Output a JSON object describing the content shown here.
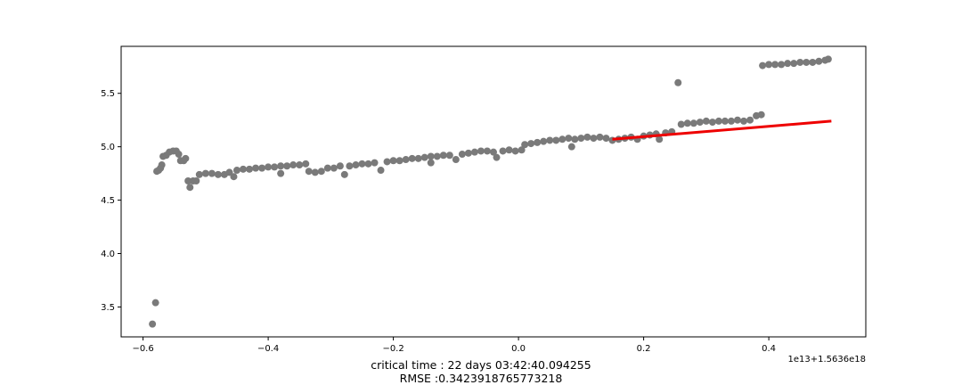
{
  "chart_data": {
    "type": "scatter",
    "x_offset_label": "1e13+1.5636e18",
    "xlim": [
      -0.635,
      0.555
    ],
    "ylim": [
      3.22,
      5.94
    ],
    "x_ticks": [
      -0.6,
      -0.4,
      -0.2,
      0.0,
      0.2,
      0.4
    ],
    "x_tick_labels": [
      "−0.6",
      "−0.4",
      "−0.2",
      "0.0",
      "0.2",
      "0.4"
    ],
    "y_ticks": [
      3.5,
      4.0,
      4.5,
      5.0,
      5.5
    ],
    "y_tick_labels": [
      "3.5",
      "4.0",
      "4.5",
      "5.0",
      "5.5"
    ],
    "grid": false,
    "colors": {
      "points": "#7a7a7a",
      "fit_line": "#ee0000"
    },
    "points": [
      [
        -0.585,
        3.34
      ],
      [
        -0.58,
        3.54
      ],
      [
        -0.578,
        4.77
      ],
      [
        -0.575,
        4.78
      ],
      [
        -0.572,
        4.8
      ],
      [
        -0.57,
        4.83
      ],
      [
        -0.568,
        4.91
      ],
      [
        -0.563,
        4.92
      ],
      [
        -0.558,
        4.95
      ],
      [
        -0.552,
        4.96
      ],
      [
        -0.547,
        4.96
      ],
      [
        -0.543,
        4.93
      ],
      [
        -0.54,
        4.87
      ],
      [
        -0.535,
        4.87
      ],
      [
        -0.532,
        4.89
      ],
      [
        -0.528,
        4.68
      ],
      [
        -0.525,
        4.62
      ],
      [
        -0.52,
        4.68
      ],
      [
        -0.515,
        4.68
      ],
      [
        -0.51,
        4.74
      ],
      [
        -0.5,
        4.75
      ],
      [
        -0.49,
        4.75
      ],
      [
        -0.48,
        4.74
      ],
      [
        -0.47,
        4.74
      ],
      [
        -0.462,
        4.76
      ],
      [
        -0.455,
        4.72
      ],
      [
        -0.45,
        4.78
      ],
      [
        -0.44,
        4.79
      ],
      [
        -0.43,
        4.79
      ],
      [
        -0.42,
        4.8
      ],
      [
        -0.41,
        4.8
      ],
      [
        -0.4,
        4.81
      ],
      [
        -0.39,
        4.81
      ],
      [
        -0.38,
        4.82
      ],
      [
        -0.38,
        4.75
      ],
      [
        -0.37,
        4.82
      ],
      [
        -0.36,
        4.83
      ],
      [
        -0.35,
        4.83
      ],
      [
        -0.34,
        4.84
      ],
      [
        -0.335,
        4.77
      ],
      [
        -0.325,
        4.76
      ],
      [
        -0.315,
        4.77
      ],
      [
        -0.305,
        4.8
      ],
      [
        -0.295,
        4.8
      ],
      [
        -0.285,
        4.82
      ],
      [
        -0.278,
        4.74
      ],
      [
        -0.27,
        4.82
      ],
      [
        -0.26,
        4.83
      ],
      [
        -0.25,
        4.84
      ],
      [
        -0.24,
        4.84
      ],
      [
        -0.23,
        4.85
      ],
      [
        -0.22,
        4.78
      ],
      [
        -0.21,
        4.86
      ],
      [
        -0.2,
        4.87
      ],
      [
        -0.19,
        4.87
      ],
      [
        -0.18,
        4.88
      ],
      [
        -0.17,
        4.89
      ],
      [
        -0.16,
        4.89
      ],
      [
        -0.15,
        4.9
      ],
      [
        -0.14,
        4.91
      ],
      [
        -0.14,
        4.85
      ],
      [
        -0.13,
        4.91
      ],
      [
        -0.12,
        4.92
      ],
      [
        -0.11,
        4.92
      ],
      [
        -0.1,
        4.88
      ],
      [
        -0.09,
        4.93
      ],
      [
        -0.08,
        4.94
      ],
      [
        -0.07,
        4.95
      ],
      [
        -0.06,
        4.96
      ],
      [
        -0.05,
        4.96
      ],
      [
        -0.04,
        4.95
      ],
      [
        -0.035,
        4.9
      ],
      [
        -0.025,
        4.96
      ],
      [
        -0.015,
        4.97
      ],
      [
        -0.005,
        4.96
      ],
      [
        0.005,
        4.97
      ],
      [
        0.01,
        5.02
      ],
      [
        0.02,
        5.03
      ],
      [
        0.03,
        5.04
      ],
      [
        0.04,
        5.05
      ],
      [
        0.05,
        5.06
      ],
      [
        0.06,
        5.06
      ],
      [
        0.07,
        5.07
      ],
      [
        0.08,
        5.08
      ],
      [
        0.085,
        5.0
      ],
      [
        0.09,
        5.07
      ],
      [
        0.1,
        5.08
      ],
      [
        0.11,
        5.09
      ],
      [
        0.12,
        5.08
      ],
      [
        0.13,
        5.09
      ],
      [
        0.14,
        5.08
      ],
      [
        0.15,
        5.06
      ],
      [
        0.16,
        5.07
      ],
      [
        0.17,
        5.08
      ],
      [
        0.18,
        5.09
      ],
      [
        0.19,
        5.07
      ],
      [
        0.2,
        5.1
      ],
      [
        0.21,
        5.11
      ],
      [
        0.22,
        5.12
      ],
      [
        0.225,
        5.07
      ],
      [
        0.235,
        5.13
      ],
      [
        0.245,
        5.14
      ],
      [
        0.255,
        5.6
      ],
      [
        0.26,
        5.21
      ],
      [
        0.27,
        5.22
      ],
      [
        0.28,
        5.22
      ],
      [
        0.29,
        5.23
      ],
      [
        0.3,
        5.24
      ],
      [
        0.31,
        5.23
      ],
      [
        0.32,
        5.24
      ],
      [
        0.33,
        5.24
      ],
      [
        0.34,
        5.24
      ],
      [
        0.35,
        5.25
      ],
      [
        0.36,
        5.24
      ],
      [
        0.37,
        5.25
      ],
      [
        0.38,
        5.29
      ],
      [
        0.388,
        5.3
      ],
      [
        0.39,
        5.76
      ],
      [
        0.4,
        5.77
      ],
      [
        0.41,
        5.77
      ],
      [
        0.42,
        5.77
      ],
      [
        0.43,
        5.78
      ],
      [
        0.44,
        5.78
      ],
      [
        0.45,
        5.79
      ],
      [
        0.46,
        5.79
      ],
      [
        0.47,
        5.79
      ],
      [
        0.48,
        5.8
      ],
      [
        0.49,
        5.81
      ],
      [
        0.495,
        5.82
      ]
    ],
    "fit_line": {
      "x": [
        0.15,
        0.5
      ],
      "y": [
        5.07,
        5.24
      ]
    }
  },
  "caption": {
    "line1": "critical time : 22 days 03:42:40.094255",
    "line2": "RMSE :0.3423918765773218"
  }
}
